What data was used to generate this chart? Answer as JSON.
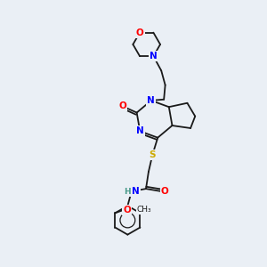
{
  "background_color": "#eaeff5",
  "bond_color": "#1a1a1a",
  "atom_colors": {
    "N": "#0000ff",
    "O": "#ff0000",
    "S": "#ccaa00",
    "H": "#4a9a8a",
    "C": "#1a1a1a"
  }
}
